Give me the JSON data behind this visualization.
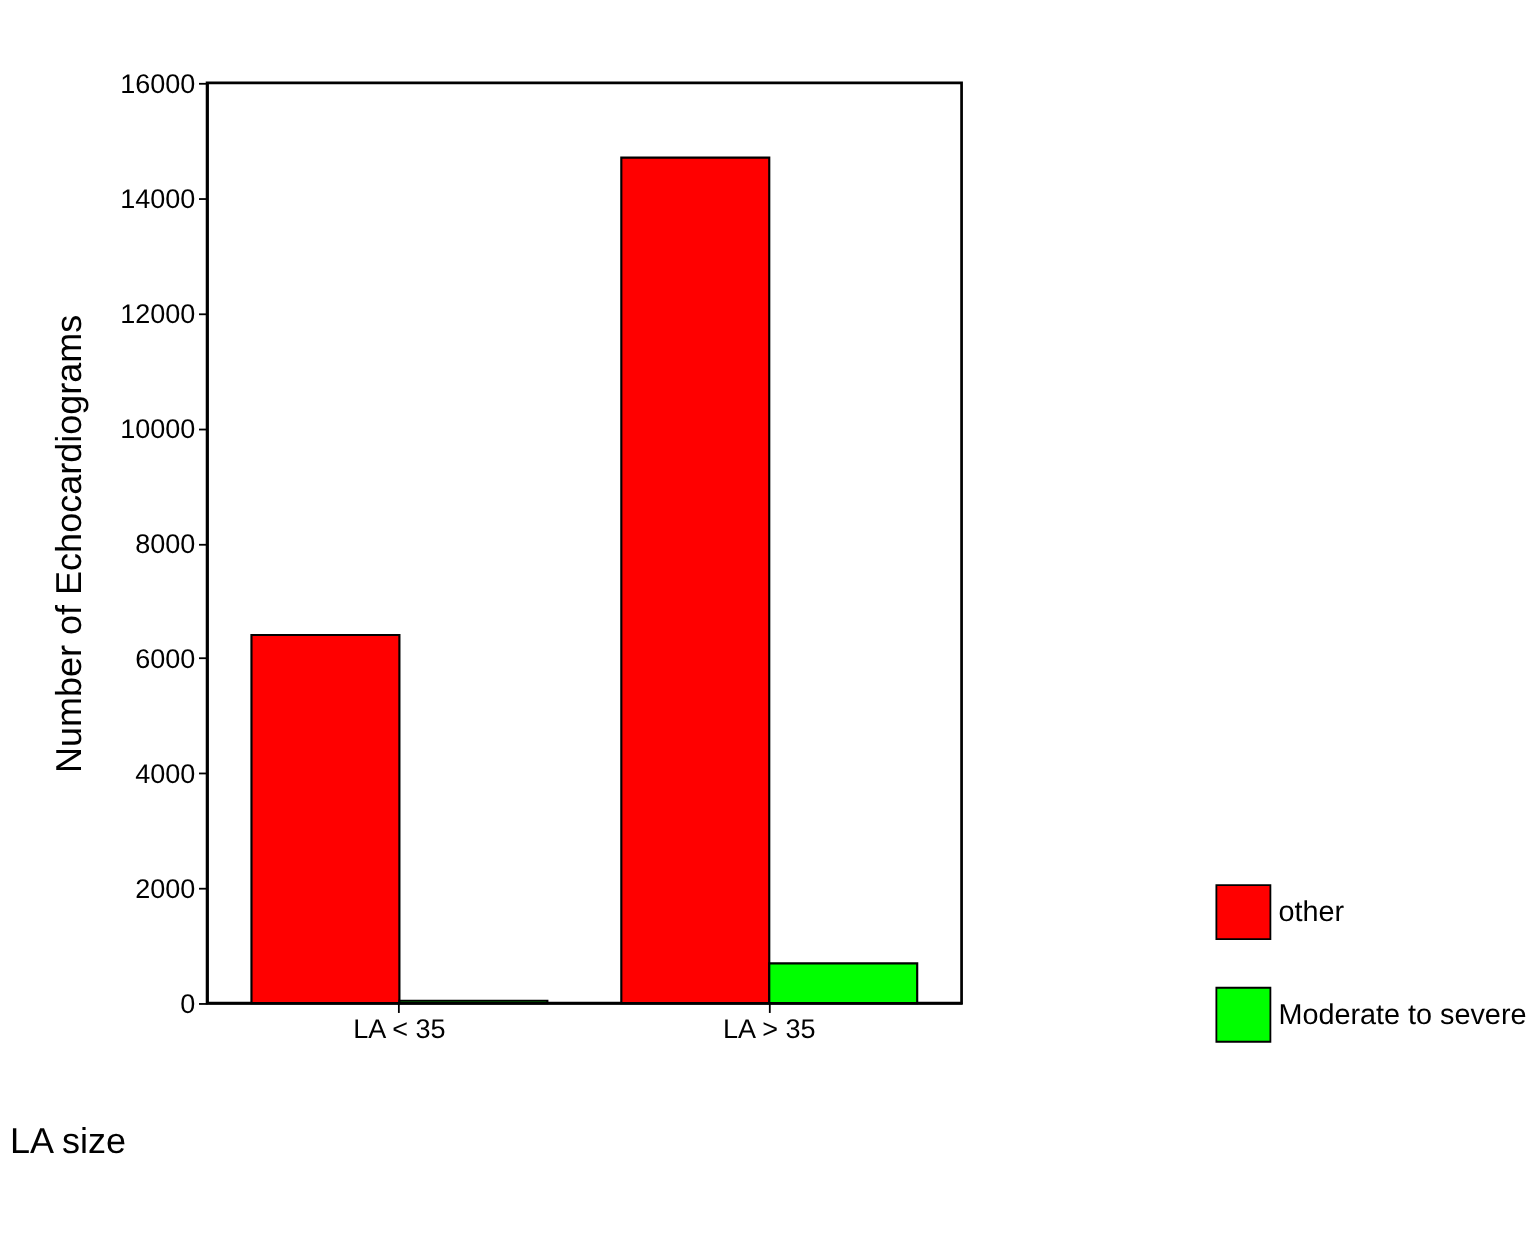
{
  "chart_data": {
    "type": "bar",
    "categories": [
      "LA < 35",
      "LA > 35"
    ],
    "series": [
      {
        "name": "other",
        "color": "#ff0000",
        "values": [
          6400,
          14700
        ]
      },
      {
        "name": "Moderate to severe",
        "color": "#00ff00",
        "values": [
          40,
          690
        ]
      }
    ],
    "xlabel": "LA size",
    "ylabel": "Number of Echocardiograms",
    "ylim": [
      0,
      16000
    ],
    "yticks": [
      0,
      2000,
      4000,
      6000,
      8000,
      10000,
      12000,
      14000,
      16000
    ],
    "grid": false,
    "legend": "right"
  }
}
